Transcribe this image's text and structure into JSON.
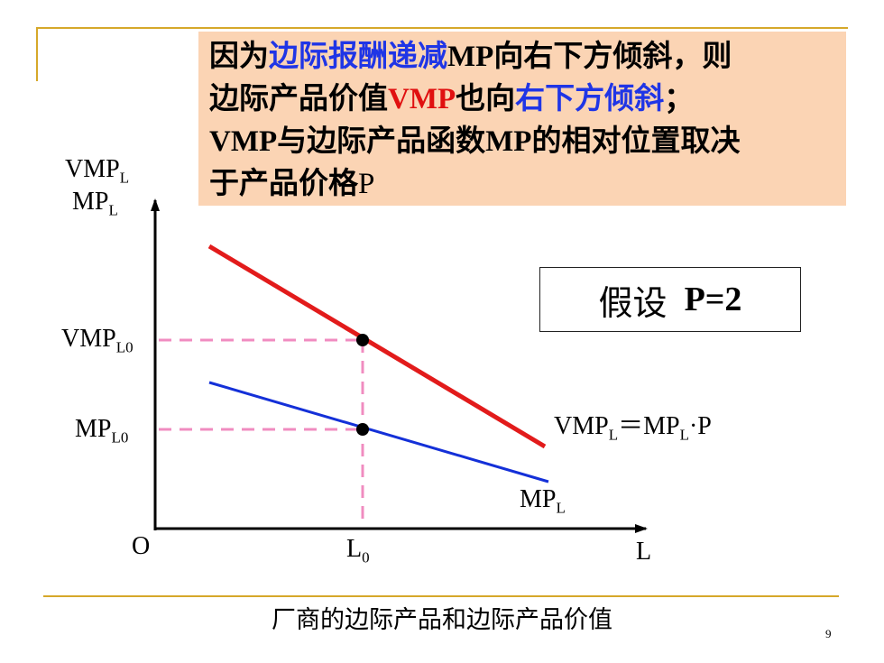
{
  "callout": {
    "line1": {
      "a": "因为",
      "b": "边际报酬递减",
      "c": "MP",
      "d": "向右下方倾斜，则"
    },
    "line2": {
      "a": "边际产品价值",
      "b": "VMP",
      "c": "也向",
      "d": "右下方倾斜",
      "e": "；"
    },
    "line3": {
      "a": "VMP",
      "b": "与边际产品函数",
      "c": "MP",
      "d": "的相对位置取决"
    },
    "line4": {
      "a": "于产品价格",
      "b": "P"
    }
  },
  "assumption": {
    "word": "假设",
    "value": "P=2"
  },
  "axes": {
    "origin": "O",
    "x_label": "L",
    "y_label_top": {
      "base": "VMP",
      "sub": "L"
    },
    "y_label_bottom": {
      "base": "MP",
      "sub": "L"
    },
    "x_tick": {
      "base": "L",
      "sub": "0"
    },
    "y_tick_high": {
      "base": "VMP",
      "sub": "L0"
    },
    "y_tick_low": {
      "base": "MP",
      "sub": "L0"
    }
  },
  "curves": {
    "vmp_formula": {
      "a": "VMP",
      "a_sub": "L",
      "eq": "＝",
      "b": "MP",
      "b_sub": "L",
      "c": "·P"
    },
    "mp_label": {
      "base": "MP",
      "sub": "L"
    },
    "vmp_color": "#e21b1b",
    "mp_color": "#1430d8",
    "guide_color": "#f08cc0"
  },
  "caption": "厂商的边际产品和边际产品价值",
  "page_number": "9"
}
